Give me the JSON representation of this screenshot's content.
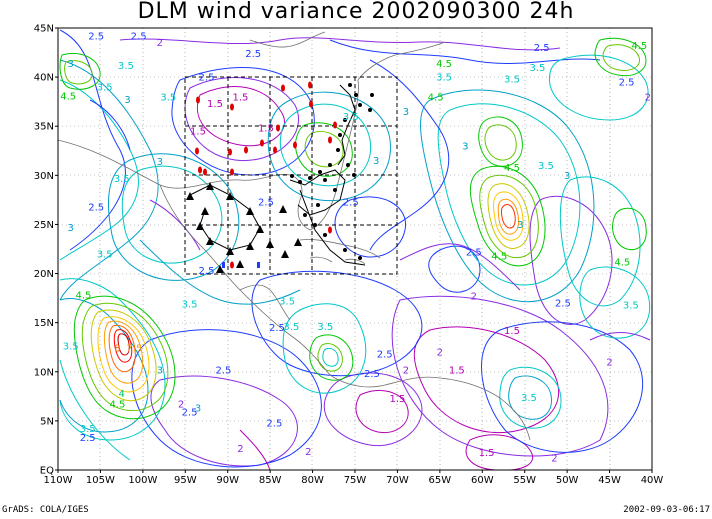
{
  "title": "DLM wind variance 2002090300 24h",
  "footer_left": "GrADS: COLA/IGES",
  "footer_right": "2002-09-03-06:17",
  "lat_labels": [
    "45N",
    "40N",
    "35N",
    "30N",
    "25N",
    "20N",
    "15N",
    "10N",
    "5N",
    "EQ"
  ],
  "lon_labels": [
    "110W",
    "105W",
    "100W",
    "95W",
    "90W",
    "85W",
    "80W",
    "75W",
    "70W",
    "65W",
    "60W",
    "55W",
    "50W",
    "45W",
    "40W"
  ],
  "contour_labels": [
    {
      "text": "2.5",
      "color": "#1e3cff",
      "lon": -105.5,
      "lat": 44.2
    },
    {
      "text": "2.5",
      "color": "#1e3cff",
      "lon": -100.5,
      "lat": 44.2
    },
    {
      "text": "2",
      "color": "#8a2be2",
      "lon": -98,
      "lat": 43.5
    },
    {
      "text": "2.5",
      "color": "#1e3cff",
      "lon": -87,
      "lat": 42.4
    },
    {
      "text": "2.5",
      "color": "#1e3cff",
      "lon": -53,
      "lat": 43.0
    },
    {
      "text": "4.5",
      "color": "#00c800",
      "lon": -41.5,
      "lat": 43.2
    },
    {
      "text": "3",
      "color": "#00a0c8",
      "lon": -108.5,
      "lat": 41.4
    },
    {
      "text": "3.5",
      "color": "#00c8c8",
      "lon": -102,
      "lat": 41.2
    },
    {
      "text": "2.5",
      "color": "#1e3cff",
      "lon": -92.5,
      "lat": 40.0
    },
    {
      "text": "4.5",
      "color": "#00c800",
      "lon": -64.5,
      "lat": 41.4
    },
    {
      "text": "3.5",
      "color": "#00c8c8",
      "lon": -53.5,
      "lat": 41.0
    },
    {
      "text": "2.5",
      "color": "#1e3cff",
      "lon": -43,
      "lat": 39.5
    },
    {
      "text": "4.5",
      "color": "#00c800",
      "lon": -108.8,
      "lat": 38.1
    },
    {
      "text": "3.5",
      "color": "#00c8c8",
      "lon": -104.5,
      "lat": 39.0
    },
    {
      "text": "3",
      "color": "#00a0c8",
      "lon": -101.8,
      "lat": 37.7
    },
    {
      "text": "3.5",
      "color": "#00c8c8",
      "lon": -97,
      "lat": 38.0
    },
    {
      "text": "1.5",
      "color": "#b400b4",
      "lon": -91.5,
      "lat": 37.3
    },
    {
      "text": "1.5",
      "color": "#b400b4",
      "lon": -88.5,
      "lat": 38.0
    },
    {
      "text": "3.5",
      "color": "#00c8c8",
      "lon": -75.5,
      "lat": 36.0
    },
    {
      "text": "4.5",
      "color": "#00c800",
      "lon": -65.5,
      "lat": 38.0
    },
    {
      "text": "3.5",
      "color": "#00c8c8",
      "lon": -64.5,
      "lat": 40.0
    },
    {
      "text": "3.5",
      "color": "#00c8c8",
      "lon": -56.5,
      "lat": 39.8
    },
    {
      "text": "2",
      "color": "#8a2be2",
      "lon": -40.5,
      "lat": 38.0
    },
    {
      "text": "1.5",
      "color": "#b400b4",
      "lon": -93.5,
      "lat": 34.5
    },
    {
      "text": "1.5",
      "color": "#b400b4",
      "lon": -85.5,
      "lat": 34.8
    },
    {
      "text": "3",
      "color": "#00a0c8",
      "lon": -69,
      "lat": 36.5
    },
    {
      "text": "3",
      "color": "#00a0c8",
      "lon": -62,
      "lat": 33.0
    },
    {
      "text": "3",
      "color": "#00a0c8",
      "lon": -98,
      "lat": 31.4
    },
    {
      "text": "3.5",
      "color": "#00c8c8",
      "lon": -102.5,
      "lat": 29.7
    },
    {
      "text": "3",
      "color": "#00a0c8",
      "lon": -72.5,
      "lat": 31.5
    },
    {
      "text": "4.5",
      "color": "#00c800",
      "lon": -56.5,
      "lat": 30.8
    },
    {
      "text": "3.5",
      "color": "#00c8c8",
      "lon": -52.5,
      "lat": 31.0
    },
    {
      "text": "3",
      "color": "#00a0c8",
      "lon": -50,
      "lat": 30.0
    },
    {
      "text": "2.5",
      "color": "#1e3cff",
      "lon": -105.5,
      "lat": 26.8
    },
    {
      "text": "2.5",
      "color": "#1e3cff",
      "lon": -75.5,
      "lat": 27.3
    },
    {
      "text": "3",
      "color": "#00a0c8",
      "lon": -55.5,
      "lat": 25.0
    },
    {
      "text": "3",
      "color": "#00a0c8",
      "lon": -108.5,
      "lat": 24.7
    },
    {
      "text": "2.5",
      "color": "#1e3cff",
      "lon": -85.5,
      "lat": 27.3
    },
    {
      "text": "4.5",
      "color": "#00c800",
      "lon": -58,
      "lat": 21.8
    },
    {
      "text": "2.5",
      "color": "#1e3cff",
      "lon": -61,
      "lat": 22.2
    },
    {
      "text": "4.5",
      "color": "#00c800",
      "lon": -43.5,
      "lat": 21.2
    },
    {
      "text": "3.5",
      "color": "#00c8c8",
      "lon": -104.5,
      "lat": 22.0
    },
    {
      "text": "2.5",
      "color": "#1e3cff",
      "lon": -92.5,
      "lat": 20.3
    },
    {
      "text": "4.5",
      "color": "#00c800",
      "lon": -107,
      "lat": 17.8
    },
    {
      "text": "3.5",
      "color": "#00c8c8",
      "lon": -94.5,
      "lat": 16.9
    },
    {
      "text": "3.5",
      "color": "#00c8c8",
      "lon": -83,
      "lat": 17.2
    },
    {
      "text": "2",
      "color": "#8a2be2",
      "lon": -61,
      "lat": 17.7
    },
    {
      "text": "2.5",
      "color": "#1e3cff",
      "lon": -50.5,
      "lat": 17.0
    },
    {
      "text": "3.5",
      "color": "#00c8c8",
      "lon": -42.5,
      "lat": 16.8
    },
    {
      "text": "2.5",
      "color": "#1e3cff",
      "lon": -84.2,
      "lat": 14.5
    },
    {
      "text": "3.5",
      "color": "#00c8c8",
      "lon": -82.5,
      "lat": 14.6
    },
    {
      "text": "3.5",
      "color": "#00c8c8",
      "lon": -78.5,
      "lat": 14.6
    },
    {
      "text": "1.5",
      "color": "#b400b4",
      "lon": -56.5,
      "lat": 14.2
    },
    {
      "text": "3.5",
      "color": "#00c8c8",
      "lon": -108.5,
      "lat": 12.6
    },
    {
      "text": "7.5",
      "color": "#ffa000",
      "lon": -101,
      "lat": 12.4
    },
    {
      "text": "8",
      "color": "#ff6400",
      "lon": -103,
      "lat": 12.4
    },
    {
      "text": "2",
      "color": "#8a2be2",
      "lon": -65,
      "lat": 12.0
    },
    {
      "text": "2.5",
      "color": "#1e3cff",
      "lon": -71.5,
      "lat": 11.8
    },
    {
      "text": "2",
      "color": "#8a2be2",
      "lon": -45,
      "lat": 11.0
    },
    {
      "text": "3",
      "color": "#00a0c8",
      "lon": -98,
      "lat": 10.2
    },
    {
      "text": "2.5",
      "color": "#1e3cff",
      "lon": -90.5,
      "lat": 10.2
    },
    {
      "text": "2.5",
      "color": "#1e3cff",
      "lon": -73,
      "lat": 9.8
    },
    {
      "text": "2",
      "color": "#8a2be2",
      "lon": -69,
      "lat": 10.2
    },
    {
      "text": "1.5",
      "color": "#b400b4",
      "lon": -63,
      "lat": 10.2
    },
    {
      "text": "4",
      "color": "#00c864",
      "lon": -102.5,
      "lat": 7.8
    },
    {
      "text": "4.5",
      "color": "#00c800",
      "lon": -103,
      "lat": 6.7
    },
    {
      "text": "2",
      "color": "#8a2be2",
      "lon": -95.5,
      "lat": 6.7
    },
    {
      "text": "2.5",
      "color": "#1e3cff",
      "lon": -94.5,
      "lat": 5.9
    },
    {
      "text": "3",
      "color": "#00a0c8",
      "lon": -93.5,
      "lat": 6.3
    },
    {
      "text": "1.5",
      "color": "#b400b4",
      "lon": -70,
      "lat": 7.3
    },
    {
      "text": "3.5",
      "color": "#00c8c8",
      "lon": -54.5,
      "lat": 7.4
    },
    {
      "text": "3.5",
      "color": "#00c8c8",
      "lon": -106.5,
      "lat": 4.2
    },
    {
      "text": "2.5",
      "color": "#1e3cff",
      "lon": -106.5,
      "lat": 3.3
    },
    {
      "text": "2.5",
      "color": "#1e3cff",
      "lon": -84.5,
      "lat": 4.8
    },
    {
      "text": "2",
      "color": "#8a2be2",
      "lon": -88.5,
      "lat": 2.2
    },
    {
      "text": "2",
      "color": "#8a2be2",
      "lon": -80.5,
      "lat": 1.9
    },
    {
      "text": "1.5",
      "color": "#b400b4",
      "lon": -59.5,
      "lat": 1.8
    },
    {
      "text": "2",
      "color": "#8a2be2",
      "lon": -51.5,
      "lat": 1.2
    }
  ]
}
